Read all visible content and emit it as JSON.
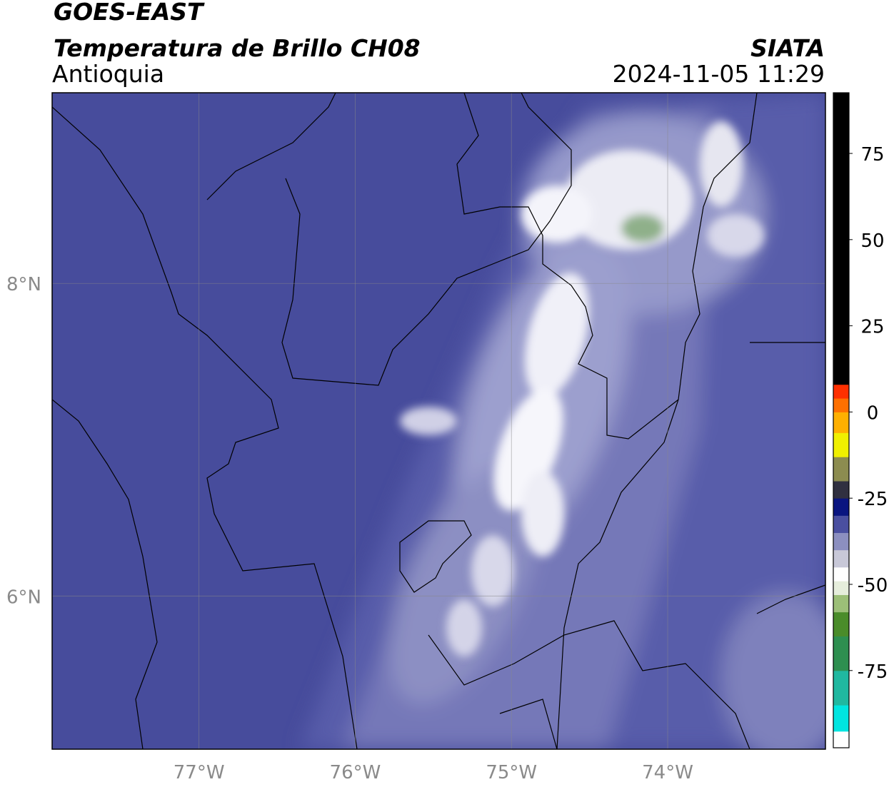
{
  "header": {
    "satellite": "GOES-EAST",
    "product": "Temperatura de Brillo CH08",
    "region": "Antioquia",
    "source": "SIATA",
    "datetime": "2024-11-05 11:29"
  },
  "map": {
    "lonlim": [
      -77.94,
      -72.99
    ],
    "latlim": [
      5.02,
      9.22
    ],
    "lonticks": [
      {
        "value": -77,
        "label": "77°W"
      },
      {
        "value": -76,
        "label": "76°W"
      },
      {
        "value": -75,
        "label": "75°W"
      },
      {
        "value": -74,
        "label": "74°W"
      }
    ],
    "latticks": [
      {
        "value": 8,
        "label": "8°N"
      },
      {
        "value": 6,
        "label": "6°N"
      }
    ],
    "grid": true
  },
  "colorbar": {
    "lim": [
      -97.4,
      92.6
    ],
    "ticks": [
      75,
      50,
      25,
      0,
      -25,
      -50,
      -75
    ],
    "stops": [
      {
        "value": -97.4,
        "color": "#ffffff"
      },
      {
        "value": -92.6,
        "color": "#00e5e0"
      },
      {
        "value": -85,
        "color": "#20b8a0"
      },
      {
        "value": -75,
        "color": "#2e8f50"
      },
      {
        "value": -65,
        "color": "#4a8c2a"
      },
      {
        "value": -58,
        "color": "#9cbf78"
      },
      {
        "value": -53,
        "color": "#e6eedc"
      },
      {
        "value": -49,
        "color": "#ffffff"
      },
      {
        "value": -45,
        "color": "#c8c8d8"
      },
      {
        "value": -40,
        "color": "#8c8fc0"
      },
      {
        "value": -35,
        "color": "#4a4fa0"
      },
      {
        "value": -30,
        "color": "#0a1580"
      },
      {
        "value": -25,
        "color": "#303040"
      },
      {
        "value": -20,
        "color": "#8c8c50"
      },
      {
        "value": -13,
        "color": "#f0f000"
      },
      {
        "value": -6,
        "color": "#ffb000"
      },
      {
        "value": 0,
        "color": "#ff7000"
      },
      {
        "value": 4,
        "color": "#ff3000"
      },
      {
        "value": 8,
        "color": "#000000"
      }
    ]
  }
}
